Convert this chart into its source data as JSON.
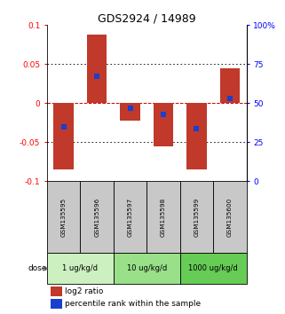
{
  "title": "GDS2924 / 14989",
  "samples": [
    "GSM135595",
    "GSM135596",
    "GSM135597",
    "GSM135598",
    "GSM135599",
    "GSM135600"
  ],
  "log2_ratios": [
    -0.085,
    0.088,
    -0.022,
    -0.055,
    -0.085,
    0.045
  ],
  "percentile_ranks": [
    35,
    67,
    47,
    43,
    34,
    53
  ],
  "ylim_left": [
    -0.1,
    0.1
  ],
  "ylim_right": [
    0,
    100
  ],
  "bar_color": "#c0392b",
  "dot_color": "#1a3fcc",
  "bar_width": 0.6,
  "dot_size": 18,
  "dose_groups": [
    {
      "label": "1 ug/kg/d",
      "samples": [
        0,
        1
      ],
      "color": "#ccf0c0"
    },
    {
      "label": "10 ug/kg/d",
      "samples": [
        2,
        3
      ],
      "color": "#99e088"
    },
    {
      "label": "1000 ug/kg/d",
      "samples": [
        4,
        5
      ],
      "color": "#66cc55"
    }
  ],
  "yticks_left": [
    -0.1,
    -0.05,
    0,
    0.05,
    0.1
  ],
  "ytick_labels_left": [
    "-0.1",
    "-0.05",
    "0",
    "0.05",
    "0.1"
  ],
  "yticks_right": [
    0,
    25,
    50,
    75,
    100
  ],
  "ytick_labels_right": [
    "0",
    "25",
    "50",
    "75",
    "100%"
  ],
  "legend_log2": "log2 ratio",
  "legend_pct": "percentile rank within the sample",
  "dose_label": "dose",
  "bg_color": "#ffffff",
  "plot_bg": "#ffffff",
  "grid_color": "#000000",
  "zero_line_color": "#cc0000",
  "sample_box_color": "#c8c8c8"
}
